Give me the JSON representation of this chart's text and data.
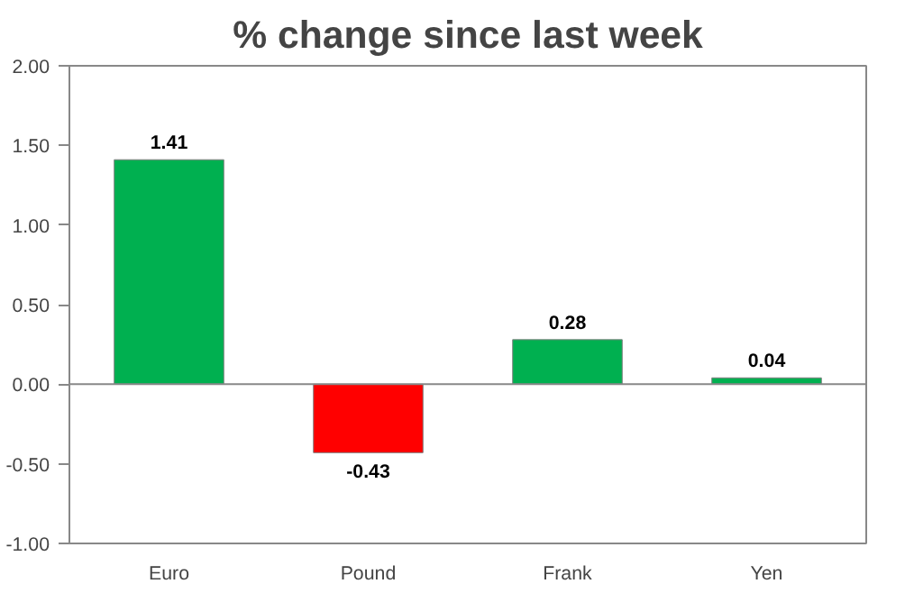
{
  "chart_data": {
    "type": "bar",
    "title": "% change since last week",
    "categories": [
      "Euro",
      "Pound",
      "Frank",
      "Yen"
    ],
    "values": [
      1.41,
      -0.43,
      0.28,
      0.04
    ],
    "colors": [
      "#00b050",
      "#ff0000",
      "#00b050",
      "#00b050"
    ],
    "ylim": [
      -1,
      2
    ],
    "yticks": [
      {
        "value": -1,
        "label": "-1.00"
      },
      {
        "value": -0.5,
        "label": "-0.50"
      },
      {
        "value": 0,
        "label": "0.00"
      },
      {
        "value": 0.5,
        "label": "0.50"
      },
      {
        "value": 1,
        "label": "1.00"
      },
      {
        "value": 1.5,
        "label": "1.50"
      },
      {
        "value": 2,
        "label": "2.00"
      }
    ],
    "data_labels": true
  }
}
